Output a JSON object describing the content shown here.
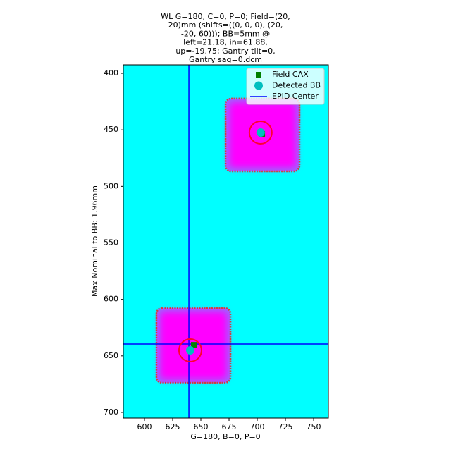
{
  "chart_data": {
    "type": "scatter",
    "title": [
      "WL G=180, C=0, P=0; Field=(20,",
      "20)mm (shifts=((0, 0, 0), (20,",
      "-20, 60))); BB=5mm @",
      "left=21.18, in=61.88,",
      "up=-19.75; Gantry tilt=0,",
      "Gantry sag=0.dcm"
    ],
    "x_label": "G=180, B=0, P=0",
    "y_label": "Max Nominal to BB: 1.96mm",
    "xlim": [
      581.25,
      763.1
    ],
    "ylim": [
      705,
      392.5
    ],
    "y_inverted": true,
    "xticks": [
      600,
      625,
      650,
      675,
      700,
      725,
      750
    ],
    "yticks": [
      400,
      450,
      500,
      550,
      600,
      650,
      700
    ],
    "background_color": "#00ffff",
    "fields": [
      {
        "x": [
          671.9,
          737.5
        ],
        "y": [
          422.4,
          486.7
        ]
      },
      {
        "x": [
          610.6,
          676.25
        ],
        "y": [
          607.7,
          673.8
        ]
      }
    ],
    "series": [
      {
        "name": "Field CAX",
        "color": "#008000",
        "marker": "square",
        "x": [
          704.4,
          643.75
        ],
        "values": [
          453.6,
          640.2
        ]
      },
      {
        "name": "Detected BB",
        "color": "#00bfbf",
        "marker": "circle",
        "x": [
          703,
          640.6
        ],
        "values": [
          452.4,
          645.1
        ]
      }
    ],
    "epid_center": {
      "name": "EPID Center",
      "color": "#0000ff",
      "x": 639.4,
      "y": 639.5
    },
    "legend": "upper right"
  }
}
